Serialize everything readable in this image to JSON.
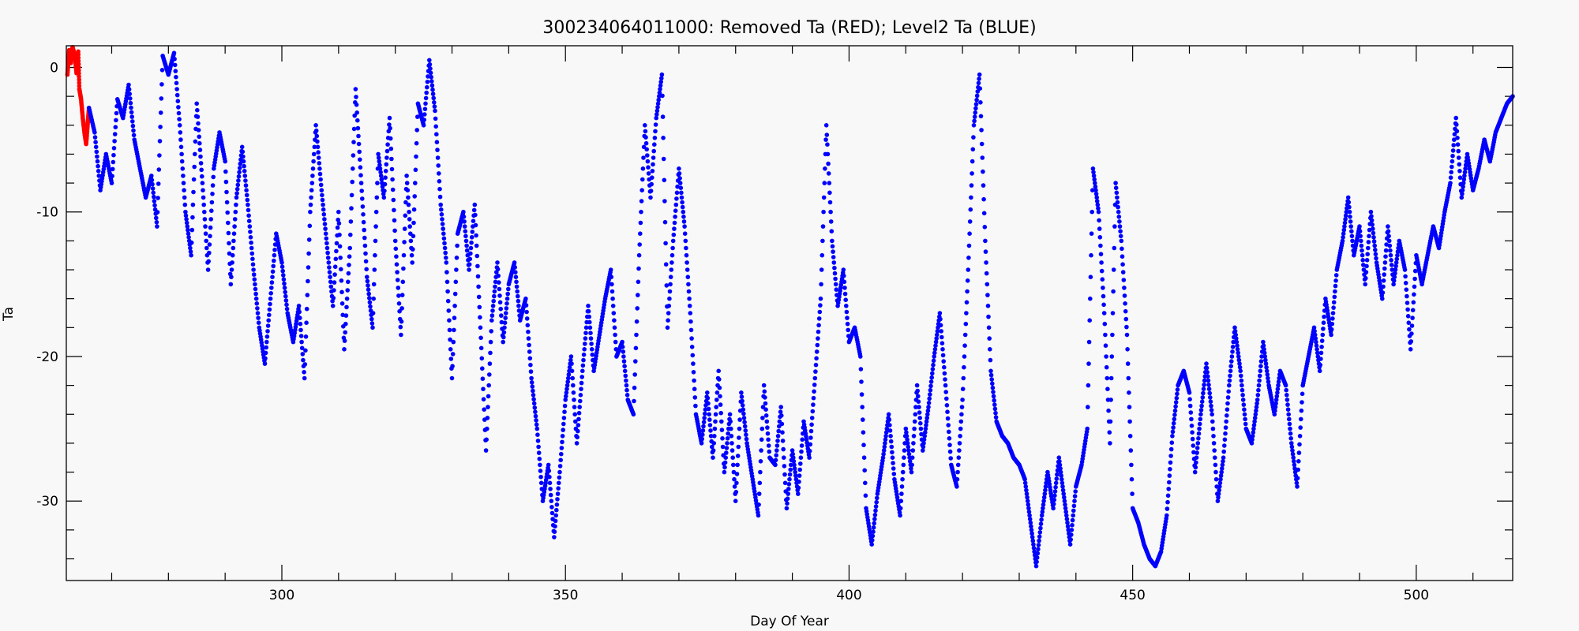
{
  "chart_data": {
    "type": "scatter",
    "title": "300234064011000: Removed Ta (RED); Level2 Ta (BLUE)",
    "xlabel": "Day Of Year",
    "ylabel": "Ta",
    "xlim": [
      262,
      517
    ],
    "ylim": [
      -35.5,
      1.5
    ],
    "x_ticks": [
      300,
      350,
      400,
      450,
      500
    ],
    "y_ticks": [
      0,
      -10,
      -20,
      -30
    ],
    "grid": false,
    "colors": {
      "removed": "#ff0000",
      "level2": "#0000ff",
      "axes": "#000000",
      "background": "#f8f8f8"
    },
    "series": [
      {
        "name": "Removed Ta (RED)",
        "color": "#ff0000",
        "points": [
          [
            262.2,
            -0.5
          ],
          [
            262.5,
            1.2
          ],
          [
            262.8,
            0.3
          ],
          [
            263.1,
            1.4
          ],
          [
            263.5,
            0.8
          ],
          [
            263.8,
            -0.4
          ],
          [
            264.1,
            1.1
          ],
          [
            264.3,
            -1.5
          ],
          [
            264.6,
            -2.2
          ],
          [
            264.9,
            -3.5
          ],
          [
            265.2,
            -4.5
          ],
          [
            265.5,
            -5.3
          ],
          [
            265.8,
            -3.8
          ],
          [
            266.0,
            -2.8
          ]
        ]
      },
      {
        "name": "Level2 Ta (BLUE)",
        "color": "#0000ff",
        "points": [
          [
            266,
            -2.8
          ],
          [
            267,
            -4.5
          ],
          [
            268,
            -8.5
          ],
          [
            269,
            -6
          ],
          [
            270,
            -8
          ],
          [
            271,
            -2.2
          ],
          [
            272,
            -3.5
          ],
          [
            273,
            -1.2
          ],
          [
            274,
            -5
          ],
          [
            275,
            -7
          ],
          [
            276,
            -9
          ],
          [
            277,
            -7.5
          ],
          [
            278,
            -11
          ],
          [
            279,
            0.8
          ],
          [
            280,
            -0.5
          ],
          [
            281,
            1
          ],
          [
            282,
            -4
          ],
          [
            283,
            -10
          ],
          [
            284,
            -13
          ],
          [
            285,
            -2.5
          ],
          [
            286,
            -8
          ],
          [
            287,
            -14
          ],
          [
            288,
            -7
          ],
          [
            289,
            -4.5
          ],
          [
            290,
            -6.5
          ],
          [
            291,
            -15
          ],
          [
            292,
            -9
          ],
          [
            293,
            -5.5
          ],
          [
            294,
            -9.5
          ],
          [
            295,
            -14
          ],
          [
            296,
            -18
          ],
          [
            297,
            -20.5
          ],
          [
            298,
            -16
          ],
          [
            299,
            -11.5
          ],
          [
            300,
            -13.5
          ],
          [
            301,
            -17
          ],
          [
            302,
            -19
          ],
          [
            303,
            -16.5
          ],
          [
            304,
            -21.5
          ],
          [
            305,
            -10
          ],
          [
            306,
            -4
          ],
          [
            307,
            -8.5
          ],
          [
            308,
            -12.5
          ],
          [
            309,
            -16.5
          ],
          [
            310,
            -10
          ],
          [
            311,
            -19.5
          ],
          [
            312,
            -12.5
          ],
          [
            313,
            -1.5
          ],
          [
            314,
            -8
          ],
          [
            315,
            -14.5
          ],
          [
            316,
            -18
          ],
          [
            317,
            -6
          ],
          [
            318,
            -9
          ],
          [
            319,
            -3.5
          ],
          [
            320,
            -12
          ],
          [
            321,
            -18.5
          ],
          [
            322,
            -7.5
          ],
          [
            323,
            -13.5
          ],
          [
            324,
            -2.5
          ],
          [
            325,
            -4
          ],
          [
            326,
            0.5
          ],
          [
            327,
            -3
          ],
          [
            328,
            -9.5
          ],
          [
            329,
            -13.5
          ],
          [
            330,
            -21.5
          ],
          [
            331,
            -11.5
          ],
          [
            332,
            -10
          ],
          [
            333,
            -14
          ],
          [
            334,
            -9.5
          ],
          [
            335,
            -18
          ],
          [
            336,
            -26.5
          ],
          [
            337,
            -17.5
          ],
          [
            338,
            -13.5
          ],
          [
            339,
            -19
          ],
          [
            340,
            -15
          ],
          [
            341,
            -13.5
          ],
          [
            342,
            -17.5
          ],
          [
            343,
            -16
          ],
          [
            344,
            -21.5
          ],
          [
            345,
            -25
          ],
          [
            346,
            -30
          ],
          [
            347,
            -27.5
          ],
          [
            348,
            -32.5
          ],
          [
            349,
            -28
          ],
          [
            350,
            -23
          ],
          [
            351,
            -20
          ],
          [
            352,
            -26
          ],
          [
            353,
            -21
          ],
          [
            354,
            -16.5
          ],
          [
            355,
            -21
          ],
          [
            356,
            -18.5
          ],
          [
            357,
            -16
          ],
          [
            358,
            -14
          ],
          [
            359,
            -20
          ],
          [
            360,
            -19
          ],
          [
            361,
            -23
          ],
          [
            362,
            -24
          ],
          [
            363,
            -13
          ],
          [
            364,
            -4
          ],
          [
            365,
            -9
          ],
          [
            366,
            -3.5
          ],
          [
            367,
            -0.5
          ],
          [
            368,
            -18
          ],
          [
            369,
            -12
          ],
          [
            370,
            -7
          ],
          [
            371,
            -11
          ],
          [
            372,
            -17
          ],
          [
            373,
            -24
          ],
          [
            374,
            -26
          ],
          [
            375,
            -22.5
          ],
          [
            376,
            -27
          ],
          [
            377,
            -21
          ],
          [
            378,
            -28
          ],
          [
            379,
            -24
          ],
          [
            380,
            -30
          ],
          [
            381,
            -22.5
          ],
          [
            382,
            -26
          ],
          [
            383,
            -28.5
          ],
          [
            384,
            -31
          ],
          [
            385,
            -22
          ],
          [
            386,
            -27
          ],
          [
            387,
            -27.5
          ],
          [
            388,
            -23.5
          ],
          [
            389,
            -30.5
          ],
          [
            390,
            -26.5
          ],
          [
            391,
            -29.5
          ],
          [
            392,
            -24.5
          ],
          [
            393,
            -27
          ],
          [
            394,
            -21.5
          ],
          [
            395,
            -16
          ],
          [
            396,
            -4
          ],
          [
            397,
            -12
          ],
          [
            398,
            -16.5
          ],
          [
            399,
            -14
          ],
          [
            400,
            -19
          ],
          [
            401,
            -18
          ],
          [
            402,
            -20
          ],
          [
            403,
            -30.5
          ],
          [
            404,
            -33
          ],
          [
            405,
            -29.5
          ],
          [
            406,
            -27
          ],
          [
            407,
            -24
          ],
          [
            408,
            -28.5
          ],
          [
            409,
            -31
          ],
          [
            410,
            -25
          ],
          [
            411,
            -28
          ],
          [
            412,
            -22
          ],
          [
            413,
            -26.5
          ],
          [
            414,
            -23.5
          ],
          [
            415,
            -20
          ],
          [
            416,
            -17
          ],
          [
            417,
            -22
          ],
          [
            418,
            -27.5
          ],
          [
            419,
            -29
          ],
          [
            420,
            -23
          ],
          [
            421,
            -14
          ],
          [
            422,
            -4
          ],
          [
            423,
            -0.5
          ],
          [
            424,
            -12
          ],
          [
            425,
            -21
          ],
          [
            426,
            -24.5
          ],
          [
            427,
            -25.5
          ],
          [
            428,
            -26
          ],
          [
            429,
            -27
          ],
          [
            430,
            -27.5
          ],
          [
            431,
            -28.5
          ],
          [
            432,
            -31.5
          ],
          [
            433,
            -34.5
          ],
          [
            434,
            -31
          ],
          [
            435,
            -28
          ],
          [
            436,
            -30.5
          ],
          [
            437,
            -27
          ],
          [
            438,
            -30
          ],
          [
            439,
            -33
          ],
          [
            440,
            -29
          ],
          [
            441,
            -27.5
          ],
          [
            442,
            -25
          ],
          [
            443,
            -7
          ],
          [
            444,
            -10
          ],
          [
            445,
            -17
          ],
          [
            446,
            -26
          ],
          [
            447,
            -8
          ],
          [
            448,
            -12
          ],
          [
            449,
            -18.5
          ],
          [
            450,
            -30.5
          ],
          [
            451,
            -31.5
          ],
          [
            452,
            -33
          ],
          [
            453,
            -34
          ],
          [
            454,
            -34.5
          ],
          [
            455,
            -33.5
          ],
          [
            456,
            -31
          ],
          [
            457,
            -25.5
          ],
          [
            458,
            -22
          ],
          [
            459,
            -21
          ],
          [
            460,
            -22.5
          ],
          [
            461,
            -28
          ],
          [
            462,
            -24
          ],
          [
            463,
            -20.5
          ],
          [
            464,
            -24
          ],
          [
            465,
            -30
          ],
          [
            466,
            -27
          ],
          [
            467,
            -22
          ],
          [
            468,
            -18
          ],
          [
            469,
            -21
          ],
          [
            470,
            -25
          ],
          [
            471,
            -26
          ],
          [
            472,
            -23
          ],
          [
            473,
            -19
          ],
          [
            474,
            -22
          ],
          [
            475,
            -24
          ],
          [
            476,
            -21
          ],
          [
            477,
            -22
          ],
          [
            478,
            -26
          ],
          [
            479,
            -29
          ],
          [
            480,
            -22
          ],
          [
            481,
            -20
          ],
          [
            482,
            -18
          ],
          [
            483,
            -21
          ],
          [
            484,
            -16
          ],
          [
            485,
            -18.5
          ],
          [
            486,
            -14
          ],
          [
            487,
            -12
          ],
          [
            488,
            -9
          ],
          [
            489,
            -13
          ],
          [
            490,
            -11
          ],
          [
            491,
            -15
          ],
          [
            492,
            -10
          ],
          [
            493,
            -13.5
          ],
          [
            494,
            -16
          ],
          [
            495,
            -11
          ],
          [
            496,
            -15
          ],
          [
            497,
            -12
          ],
          [
            498,
            -14
          ],
          [
            499,
            -19.5
          ],
          [
            500,
            -13
          ],
          [
            501,
            -15
          ],
          [
            502,
            -13
          ],
          [
            503,
            -11
          ],
          [
            504,
            -12.5
          ],
          [
            505,
            -10
          ],
          [
            506,
            -8
          ],
          [
            507,
            -3.5
          ],
          [
            508,
            -9
          ],
          [
            509,
            -6
          ],
          [
            510,
            -8.5
          ],
          [
            511,
            -7
          ],
          [
            512,
            -5
          ],
          [
            513,
            -6.5
          ],
          [
            514,
            -4.5
          ],
          [
            515,
            -3.5
          ],
          [
            516,
            -2.5
          ],
          [
            517,
            -2
          ]
        ]
      }
    ]
  }
}
